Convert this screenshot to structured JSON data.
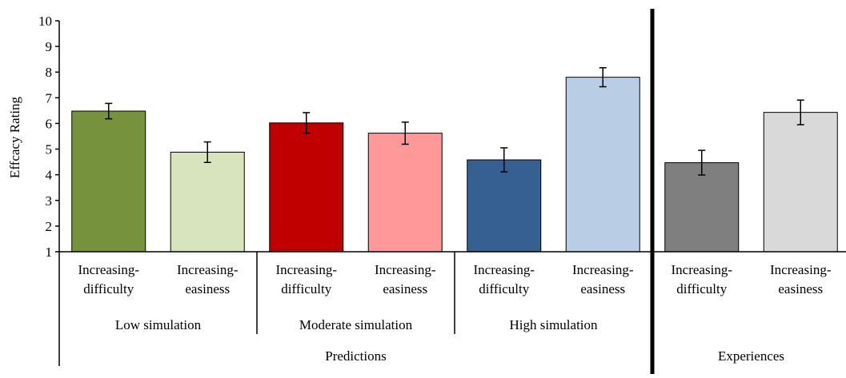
{
  "chart_data": {
    "type": "bar",
    "ylabel": "Effcacy Rating",
    "ylim": [
      1,
      10
    ],
    "yticks": [
      1,
      2,
      3,
      4,
      5,
      6,
      7,
      8,
      9,
      10
    ],
    "grid": false,
    "categories": [
      [
        "Increasing-",
        "difficulty"
      ],
      [
        "Increasing-",
        "easiness"
      ],
      [
        "Increasing-",
        "difficulty"
      ],
      [
        "Increasing-",
        "easiness"
      ],
      [
        "Increasing-",
        "difficulty"
      ],
      [
        "Increasing-",
        "easiness"
      ],
      [
        "Increasing-",
        "difficulty"
      ],
      [
        "Increasing-",
        "easiness"
      ]
    ],
    "values": [
      6.48,
      4.88,
      6.02,
      5.62,
      4.58,
      7.8,
      4.47,
      6.43
    ],
    "errors": [
      0.3,
      0.4,
      0.4,
      0.43,
      0.47,
      0.37,
      0.48,
      0.48
    ],
    "colors": [
      "#76923c",
      "#d7e4bd",
      "#c00000",
      "#ff9999",
      "#376092",
      "#b9cde5",
      "#7f7f7f",
      "#d9d9d9"
    ],
    "groups": [
      {
        "label": "Low simulation",
        "start": 0,
        "end": 1
      },
      {
        "label": "Moderate simulation",
        "start": 2,
        "end": 3
      },
      {
        "label": "High simulation",
        "start": 4,
        "end": 5
      }
    ],
    "supergroups": [
      {
        "label": "Predictions",
        "start": 0,
        "end": 5
      },
      {
        "label": "Experiences",
        "start": 6,
        "end": 7
      }
    ]
  }
}
